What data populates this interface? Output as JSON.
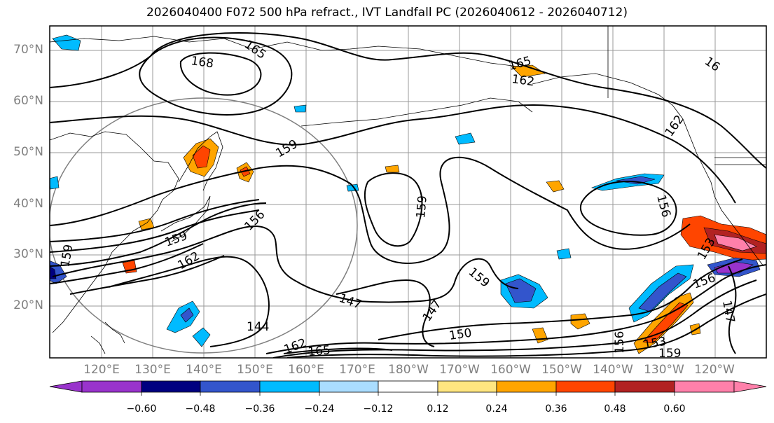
{
  "title": "2026040400 F072 500 hPa refract., IVT Landfall PC (2026040612 - 2026040712)",
  "lat_labels": [
    "70°N",
    "60°N",
    "50°N",
    "40°N",
    "30°N",
    "20°N"
  ],
  "lon_labels": [
    "120°E",
    "130°E",
    "140°E",
    "150°E",
    "160°E",
    "170°E",
    "180°W",
    "170°W",
    "160°W",
    "150°W",
    "140°W",
    "130°W",
    "120°W"
  ],
  "contour_labels": [
    "168",
    "165",
    "165",
    "162",
    "159",
    "159",
    "156",
    "159",
    "162",
    "159",
    "147",
    "144",
    "147",
    "150",
    "159",
    "165",
    "162",
    "156",
    "153",
    "159",
    "156",
    "153",
    "147",
    "156",
    "162",
    "16"
  ],
  "colorbar": {
    "ticks": [
      "−0.60",
      "−0.48",
      "−0.36",
      "−0.24",
      "−0.12",
      "0.12",
      "0.24",
      "0.36",
      "0.48",
      "0.60"
    ],
    "colors": [
      "#9933cc",
      "#000080",
      "#3355cc",
      "#00bbff",
      "#aaddff",
      "#ffffff",
      "#ffe680",
      "#ffa500",
      "#ff4500",
      "#b22222",
      "#ff80aa"
    ]
  }
}
